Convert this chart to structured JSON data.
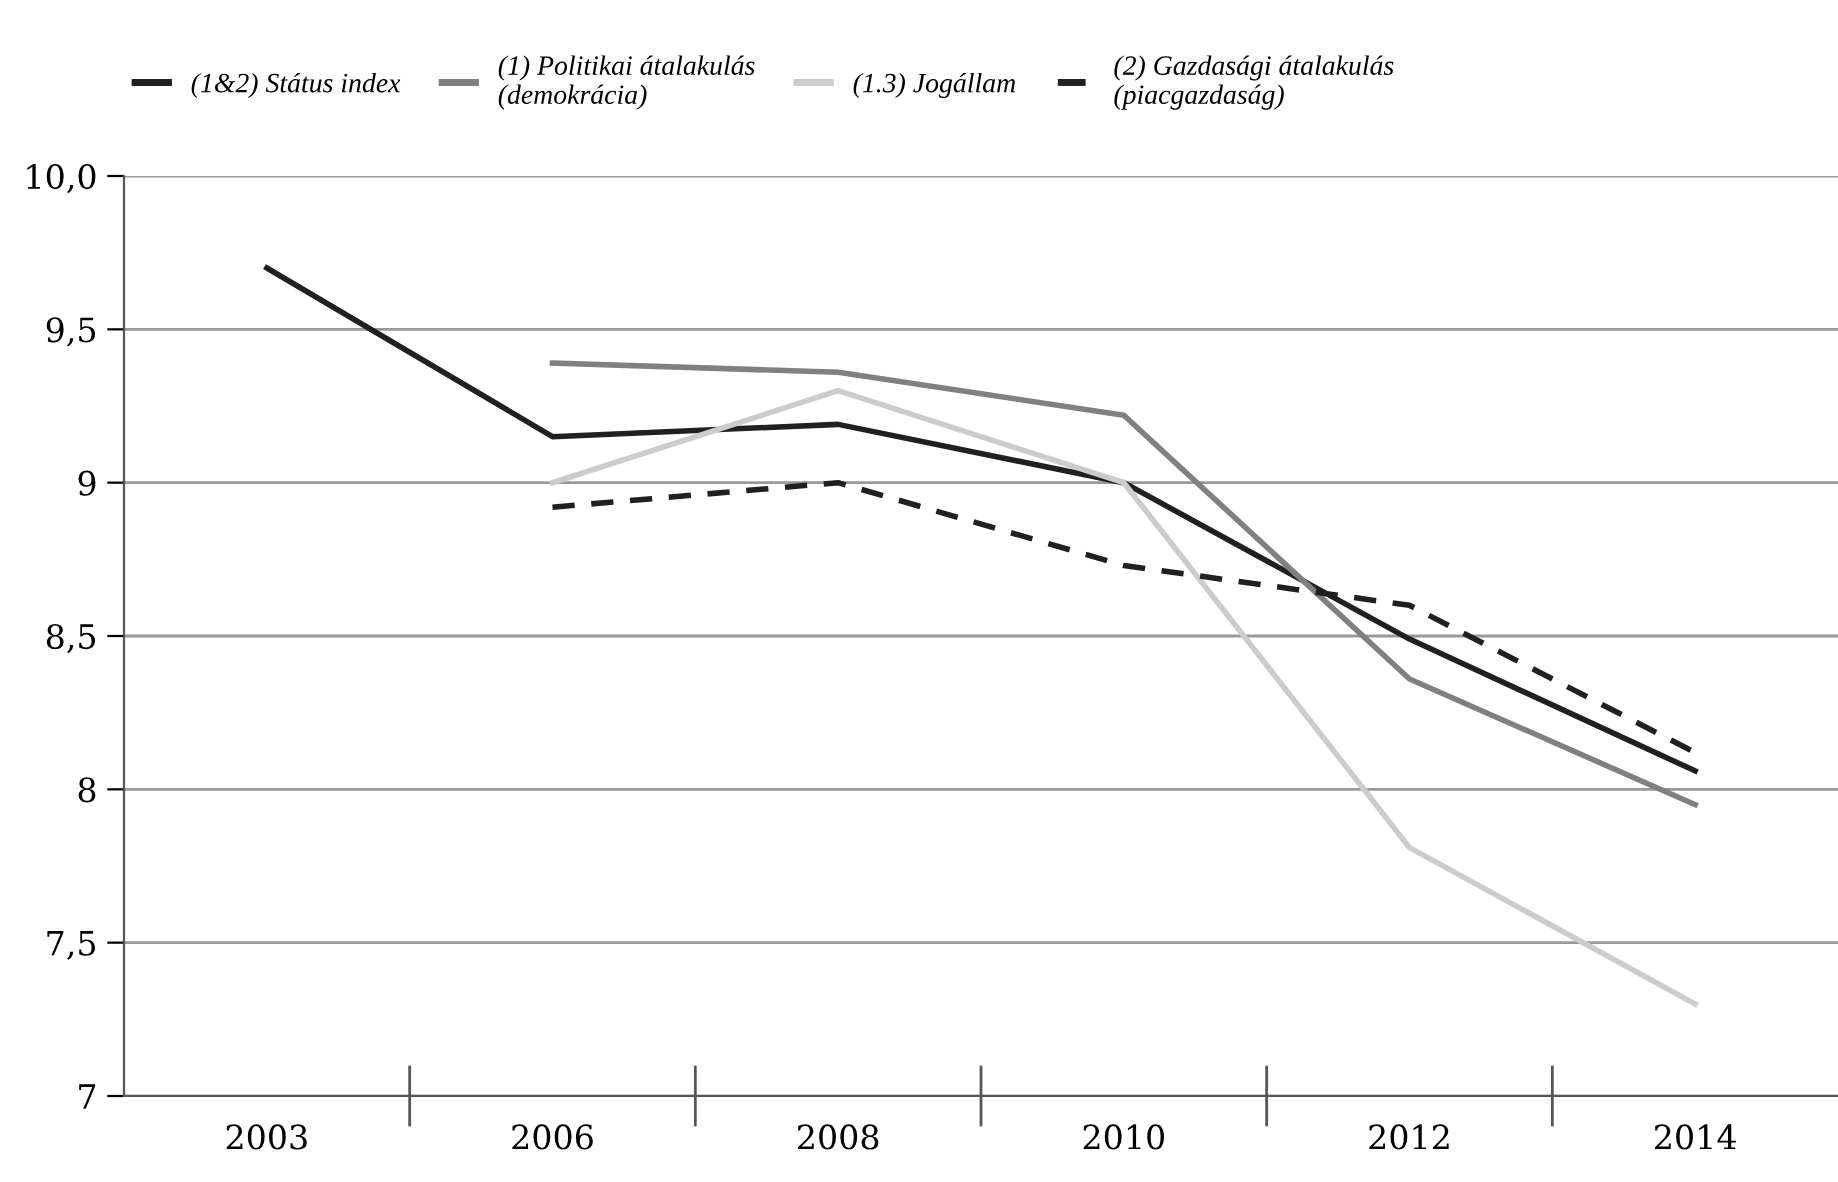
{
  "chart_data": {
    "type": "line",
    "categories": [
      "2003",
      "2006",
      "2008",
      "2010",
      "2012",
      "2014"
    ],
    "series": [
      {
        "name": "(1&2) Státus index",
        "color": "#231f20",
        "line_style": "solid",
        "values": [
          9.7,
          9.15,
          9.19,
          9.0,
          8.49,
          8.06
        ]
      },
      {
        "name": "(1) Politikai átalakulás\n(demokrácia)",
        "color": "#808080",
        "line_style": "solid",
        "values": [
          null,
          9.39,
          9.36,
          9.22,
          8.36,
          7.95
        ]
      },
      {
        "name": "(1.3) Jogállam",
        "color": "#cccccc",
        "line_style": "solid",
        "values": [
          null,
          9.0,
          9.3,
          9.0,
          7.81,
          7.3
        ]
      },
      {
        "name": "(2) Gazdasági átalakulás\n(piacgazdaság)",
        "color": "#231f20",
        "line_style": "dashed",
        "values": [
          null,
          8.92,
          9.0,
          8.73,
          8.6,
          8.12
        ]
      }
    ],
    "ylim": [
      7,
      10
    ],
    "yticks": [
      7,
      {
        "value": 7.5,
        "label": "7,5"
      },
      8,
      {
        "value": 8.5,
        "label": "8,5"
      },
      9,
      {
        "value": 9.5,
        "label": "9,5"
      },
      {
        "value": 10,
        "label": "10,0"
      }
    ],
    "grid": "y",
    "legend": "top",
    "marker": "none"
  }
}
